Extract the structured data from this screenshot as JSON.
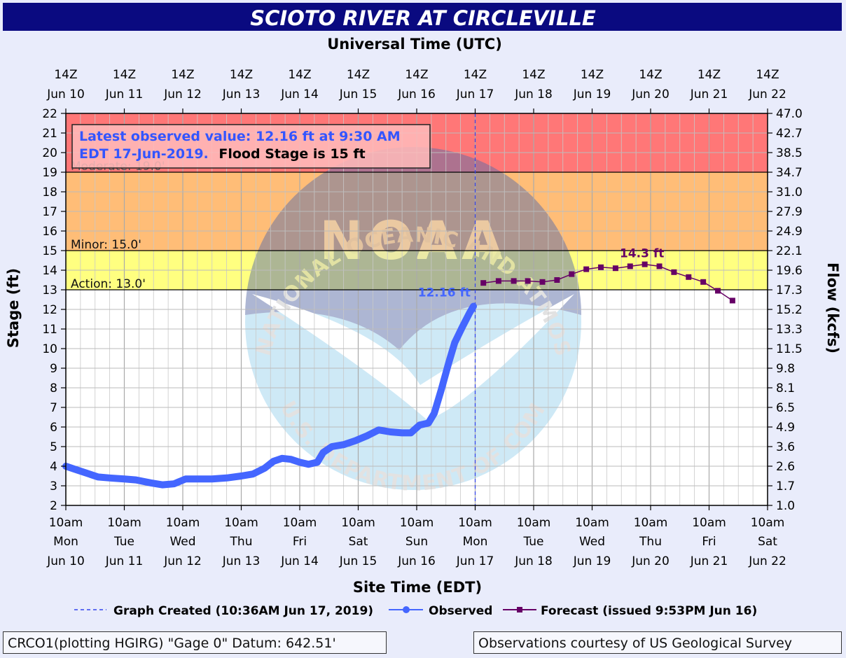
{
  "title": "SCIOTO RIVER AT CIRCLEVILLE",
  "top_axis_label": "Universal Time (UTC)",
  "bottom_axis_label": "Site Time (EDT)",
  "left_axis_label": "Stage (ft)",
  "right_axis_label": "Flow (kcfs)",
  "watermark": {
    "logo_text": "NOAA",
    "ring_text_top": "NATIONAL OCEANIC AND ATMOSPHERIC ADMINISTRATION",
    "ring_text_bottom": "U.S. DEPARTMENT OF COMMERCE"
  },
  "latest_box": {
    "line1": "Latest observed value: 12.16 ft at 9:30 AM",
    "line2_blue": "EDT 17-Jun-2019.",
    "line2_black": "Flood Stage is 15 ft"
  },
  "legend": {
    "created": "Graph Created (10:36AM Jun 17, 2019)",
    "observed": "Observed",
    "forecast": "Forecast (issued 9:53PM Jun 16)"
  },
  "footer": {
    "left": "CRCO1(plotting HGIRG) \"Gage 0\" Datum: 642.51'",
    "right": "Observations courtesy of US Geological Survey"
  },
  "colors": {
    "title_bg": "#0a0a80",
    "moderate_zone": "#ff7777",
    "minor_zone": "#ffbd77",
    "action_zone": "#ffff80",
    "observed": "#4466ff",
    "forecast": "#660066",
    "created_line": "#3344ee"
  },
  "chart_data": {
    "type": "line",
    "x_unit": "day index (0 = Mon Jun 10 10am EDT)",
    "xlim": [
      0,
      12
    ],
    "ylim": [
      2,
      22
    ],
    "y_ticks": [
      2,
      3,
      4,
      5,
      6,
      7,
      8,
      9,
      10,
      11,
      12,
      13,
      14,
      15,
      16,
      17,
      18,
      19,
      20,
      21,
      22
    ],
    "flow_ticks": [
      "1.0",
      "1.7",
      "2.6",
      "3.6",
      "4.9",
      "6.5",
      "8.1",
      "9.8",
      "11.5",
      "13.3",
      "15.2",
      "17.3",
      "19.6",
      "22.1",
      "24.9",
      "27.9",
      "31.0",
      "34.7",
      "38.5",
      "42.7",
      "47.0"
    ],
    "utc_ticks": [
      {
        "top": "14Z",
        "bottom": "Jun 10"
      },
      {
        "top": "14Z",
        "bottom": "Jun 11"
      },
      {
        "top": "14Z",
        "bottom": "Jun 12"
      },
      {
        "top": "14Z",
        "bottom": "Jun 13"
      },
      {
        "top": "14Z",
        "bottom": "Jun 14"
      },
      {
        "top": "14Z",
        "bottom": "Jun 15"
      },
      {
        "top": "14Z",
        "bottom": "Jun 16"
      },
      {
        "top": "14Z",
        "bottom": "Jun 17"
      },
      {
        "top": "14Z",
        "bottom": "Jun 18"
      },
      {
        "top": "14Z",
        "bottom": "Jun 19"
      },
      {
        "top": "14Z",
        "bottom": "Jun 20"
      },
      {
        "top": "14Z",
        "bottom": "Jun 21"
      },
      {
        "top": "14Z",
        "bottom": "Jun 22"
      }
    ],
    "site_ticks": [
      {
        "time": "10am",
        "day": "Mon",
        "date": "Jun 10"
      },
      {
        "time": "10am",
        "day": "Tue",
        "date": "Jun 11"
      },
      {
        "time": "10am",
        "day": "Wed",
        "date": "Jun 12"
      },
      {
        "time": "10am",
        "day": "Thu",
        "date": "Jun 13"
      },
      {
        "time": "10am",
        "day": "Fri",
        "date": "Jun 14"
      },
      {
        "time": "10am",
        "day": "Sat",
        "date": "Jun 15"
      },
      {
        "time": "10am",
        "day": "Sun",
        "date": "Jun 16"
      },
      {
        "time": "10am",
        "day": "Mon",
        "date": "Jun 17"
      },
      {
        "time": "10am",
        "day": "Tue",
        "date": "Jun 18"
      },
      {
        "time": "10am",
        "day": "Wed",
        "date": "Jun 19"
      },
      {
        "time": "10am",
        "day": "Thu",
        "date": "Jun 20"
      },
      {
        "time": "10am",
        "day": "Fri",
        "date": "Jun 21"
      },
      {
        "time": "10am",
        "day": "Sat",
        "date": "Jun 22"
      }
    ],
    "flood_zones": [
      {
        "name": "Moderate",
        "label": "Moderate: 19.0'",
        "from": 19,
        "to": 22
      },
      {
        "name": "Minor",
        "label": "Minor: 15.0'",
        "from": 15,
        "to": 19
      },
      {
        "name": "Action",
        "label": "Action: 13.0'",
        "from": 13,
        "to": 15
      }
    ],
    "graph_created_x": 7.0,
    "series": [
      {
        "name": "Observed",
        "label": "12.16 ft",
        "x": [
          0.0,
          0.15,
          0.35,
          0.55,
          0.75,
          1.0,
          1.2,
          1.45,
          1.65,
          1.85,
          2.05,
          2.25,
          2.5,
          2.75,
          3.0,
          3.2,
          3.4,
          3.55,
          3.7,
          3.85,
          4.0,
          4.15,
          4.3,
          4.4,
          4.55,
          4.75,
          4.95,
          5.15,
          5.35,
          5.55,
          5.75,
          5.9,
          6.05,
          6.2,
          6.3,
          6.42,
          6.55,
          6.65,
          6.78,
          6.9,
          6.97
        ],
        "y": [
          4.0,
          3.85,
          3.65,
          3.45,
          3.4,
          3.35,
          3.3,
          3.15,
          3.05,
          3.1,
          3.35,
          3.35,
          3.35,
          3.4,
          3.5,
          3.6,
          3.9,
          4.25,
          4.4,
          4.35,
          4.2,
          4.1,
          4.2,
          4.7,
          5.0,
          5.1,
          5.3,
          5.55,
          5.85,
          5.75,
          5.7,
          5.7,
          6.1,
          6.2,
          6.7,
          7.9,
          9.3,
          10.3,
          11.1,
          11.8,
          12.16
        ]
      },
      {
        "name": "Forecast",
        "label": "14.3 ft",
        "x": [
          7.14,
          7.4,
          7.66,
          7.9,
          8.15,
          8.4,
          8.65,
          8.9,
          9.15,
          9.4,
          9.65,
          9.9,
          10.15,
          10.4,
          10.65,
          10.9,
          11.15,
          11.4
        ],
        "y": [
          13.35,
          13.45,
          13.45,
          13.45,
          13.4,
          13.5,
          13.8,
          14.05,
          14.15,
          14.1,
          14.2,
          14.3,
          14.2,
          13.9,
          13.65,
          13.4,
          12.95,
          12.45
        ]
      }
    ]
  }
}
